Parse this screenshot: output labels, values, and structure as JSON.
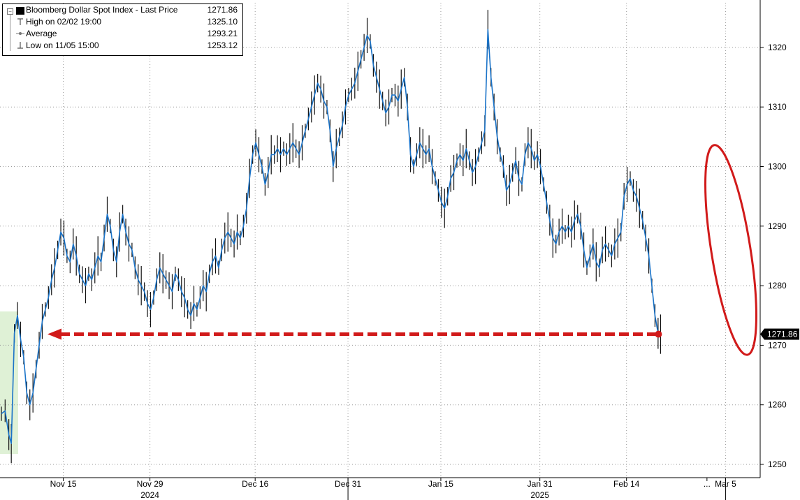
{
  "legend": {
    "title": "Bloomberg Dollar Spot Index - Last Price",
    "last_value": "1271.86",
    "high_label": "High on 02/02 19:00",
    "high_value": "1325.10",
    "avg_label": "Average",
    "avg_value": "1293.21",
    "low_label": "Low on 11/05 15:00",
    "low_value": "1253.12"
  },
  "last_price_tag": "1271.86",
  "colors": {
    "line": "#1a73c8",
    "annotation": "#d11a1a",
    "highlight": "#dff1d6",
    "grid": "#9a9a9a"
  },
  "chart_data": {
    "type": "line",
    "title": "",
    "ylabel": "",
    "xlabel": "",
    "ylim": [
      1248,
      1328
    ],
    "yticks": [
      1250,
      1260,
      1270,
      1280,
      1290,
      1300,
      1310,
      1320
    ],
    "xtick_labels": [
      "Nov 15",
      "Nov 29",
      "Dec 16",
      "Dec 31",
      "Jan 15",
      "Jan 31",
      "Feb 14",
      "...",
      "Mar 5"
    ],
    "year_labels": [
      "2024",
      "2025"
    ],
    "x_range_days": [
      0,
      120
    ],
    "xticks_day": [
      10,
      24,
      41,
      56,
      71,
      87,
      101,
      114,
      117
    ],
    "year_label_day": [
      24,
      87
    ],
    "year_separator_day": [
      56
    ],
    "series": [
      {
        "values": [
          [
            0,
            1258.5
          ],
          [
            0.6,
            1259
          ],
          [
            1.2,
            1255
          ],
          [
            1.6,
            1253.5
          ],
          [
            2.1,
            1272
          ],
          [
            2.6,
            1275
          ],
          [
            3.1,
            1271
          ],
          [
            3.6,
            1268
          ],
          [
            4.1,
            1262
          ],
          [
            4.6,
            1260
          ],
          [
            5.1,
            1262
          ],
          [
            5.6,
            1266
          ],
          [
            6.1,
            1270
          ],
          [
            6.6,
            1274
          ],
          [
            7.1,
            1276
          ],
          [
            7.6,
            1278
          ],
          [
            8.1,
            1281
          ],
          [
            8.6,
            1283
          ],
          [
            9.1,
            1286
          ],
          [
            9.6,
            1289
          ],
          [
            10.1,
            1288
          ],
          [
            10.6,
            1285
          ],
          [
            11.1,
            1284
          ],
          [
            11.6,
            1287
          ],
          [
            12.1,
            1285
          ],
          [
            12.6,
            1282
          ],
          [
            13.1,
            1281
          ],
          [
            13.6,
            1280
          ],
          [
            14.1,
            1282
          ],
          [
            14.6,
            1281
          ],
          [
            15.1,
            1283
          ],
          [
            15.6,
            1285
          ],
          [
            16.1,
            1284
          ],
          [
            16.6,
            1288
          ],
          [
            17.1,
            1292
          ],
          [
            17.6,
            1290
          ],
          [
            18.1,
            1286
          ],
          [
            18.6,
            1284
          ],
          [
            19.1,
            1289
          ],
          [
            19.6,
            1292
          ],
          [
            20.1,
            1289
          ],
          [
            20.6,
            1287
          ],
          [
            21.1,
            1286
          ],
          [
            21.6,
            1283
          ],
          [
            22.1,
            1281
          ],
          [
            22.6,
            1280
          ],
          [
            23.1,
            1279
          ],
          [
            23.6,
            1277
          ],
          [
            24.1,
            1276
          ],
          [
            24.6,
            1278
          ],
          [
            25.1,
            1281
          ],
          [
            25.6,
            1283
          ],
          [
            26.1,
            1282
          ],
          [
            26.6,
            1281
          ],
          [
            27.1,
            1280
          ],
          [
            27.6,
            1279
          ],
          [
            28.1,
            1282
          ],
          [
            28.6,
            1281
          ],
          [
            29.1,
            1279
          ],
          [
            29.6,
            1278
          ],
          [
            30.1,
            1276
          ],
          [
            30.6,
            1275
          ],
          [
            31.1,
            1277
          ],
          [
            31.6,
            1276
          ],
          [
            32.1,
            1278
          ],
          [
            32.6,
            1280
          ],
          [
            33.1,
            1279
          ],
          [
            33.6,
            1282
          ],
          [
            34.1,
            1284
          ],
          [
            34.6,
            1285
          ],
          [
            35.1,
            1283
          ],
          [
            35.6,
            1286
          ],
          [
            36.1,
            1288
          ],
          [
            36.6,
            1289
          ],
          [
            37.1,
            1288
          ],
          [
            37.6,
            1287
          ],
          [
            38.1,
            1289
          ],
          [
            38.6,
            1288
          ],
          [
            39.1,
            1290
          ],
          [
            39.6,
            1293
          ],
          [
            40.1,
            1298
          ],
          [
            40.6,
            1302
          ],
          [
            41.1,
            1304
          ],
          [
            41.6,
            1302
          ],
          [
            42.1,
            1300
          ],
          [
            42.6,
            1297
          ],
          [
            43.1,
            1299
          ],
          [
            43.6,
            1302
          ],
          [
            44.1,
            1302
          ],
          [
            44.6,
            1303
          ],
          [
            45.1,
            1302
          ],
          [
            45.6,
            1303
          ],
          [
            46.1,
            1302
          ],
          [
            46.6,
            1303
          ],
          [
            47.1,
            1304
          ],
          [
            47.6,
            1303
          ],
          [
            48.1,
            1302
          ],
          [
            48.6,
            1304
          ],
          [
            49.1,
            1306
          ],
          [
            49.6,
            1308
          ],
          [
            50.1,
            1310
          ],
          [
            50.6,
            1312
          ],
          [
            51.1,
            1314
          ],
          [
            51.6,
            1313
          ],
          [
            52.1,
            1311
          ],
          [
            52.6,
            1310
          ],
          [
            53.1,
            1306
          ],
          [
            53.6,
            1300
          ],
          [
            54.1,
            1303
          ],
          [
            54.6,
            1305
          ],
          [
            55.1,
            1307
          ],
          [
            55.6,
            1310
          ],
          [
            56.1,
            1312
          ],
          [
            56.6,
            1313
          ],
          [
            57.1,
            1314
          ],
          [
            57.6,
            1316
          ],
          [
            58.1,
            1318
          ],
          [
            58.6,
            1320
          ],
          [
            59.1,
            1322
          ],
          [
            59.6,
            1321
          ],
          [
            60.1,
            1317
          ],
          [
            60.6,
            1315
          ],
          [
            61.1,
            1313
          ],
          [
            61.6,
            1311
          ],
          [
            62.1,
            1309
          ],
          [
            62.6,
            1310
          ],
          [
            63.1,
            1312
          ],
          [
            63.6,
            1312
          ],
          [
            64.1,
            1311
          ],
          [
            64.6,
            1313
          ],
          [
            65.1,
            1315
          ],
          [
            65.6,
            1310
          ],
          [
            66.1,
            1302
          ],
          [
            66.6,
            1300
          ],
          [
            67.1,
            1302
          ],
          [
            67.6,
            1304
          ],
          [
            68.1,
            1303
          ],
          [
            68.6,
            1302
          ],
          [
            69.1,
            1303
          ],
          [
            69.6,
            1300
          ],
          [
            70.1,
            1298
          ],
          [
            70.6,
            1296
          ],
          [
            71.1,
            1294
          ],
          [
            71.6,
            1293
          ],
          [
            72.1,
            1295
          ],
          [
            72.6,
            1298
          ],
          [
            73.1,
            1299
          ],
          [
            73.6,
            1301
          ],
          [
            74.1,
            1302
          ],
          [
            74.6,
            1301
          ],
          [
            75.1,
            1303
          ],
          [
            75.6,
            1301
          ],
          [
            76.1,
            1299
          ],
          [
            76.6,
            1300
          ],
          [
            77.1,
            1302
          ],
          [
            77.6,
            1304
          ],
          [
            78.1,
            1306
          ],
          [
            78.6,
            1323
          ],
          [
            79.1,
            1315
          ],
          [
            79.6,
            1310
          ],
          [
            80.1,
            1305
          ],
          [
            80.6,
            1302
          ],
          [
            81.1,
            1300
          ],
          [
            81.6,
            1296
          ],
          [
            82.1,
            1297
          ],
          [
            82.6,
            1299
          ],
          [
            83.1,
            1301
          ],
          [
            83.6,
            1298
          ],
          [
            84.1,
            1297
          ],
          [
            84.6,
            1302
          ],
          [
            85.1,
            1304
          ],
          [
            85.6,
            1303
          ],
          [
            86.1,
            1301
          ],
          [
            86.6,
            1302
          ],
          [
            87.1,
            1300
          ],
          [
            87.6,
            1297
          ],
          [
            88.1,
            1294
          ],
          [
            88.6,
            1291
          ],
          [
            89.1,
            1288
          ],
          [
            89.6,
            1287
          ],
          [
            90.1,
            1289
          ],
          [
            90.6,
            1290
          ],
          [
            91.1,
            1289
          ],
          [
            91.6,
            1290
          ],
          [
            92.1,
            1289
          ],
          [
            92.6,
            1291
          ],
          [
            93.1,
            1292
          ],
          [
            93.6,
            1290
          ],
          [
            94.1,
            1286
          ],
          [
            94.6,
            1283
          ],
          [
            95.1,
            1285
          ],
          [
            95.6,
            1287
          ],
          [
            96.1,
            1284
          ],
          [
            96.6,
            1283
          ],
          [
            97.1,
            1286
          ],
          [
            97.6,
            1287
          ],
          [
            98.1,
            1286
          ],
          [
            98.6,
            1285
          ],
          [
            99.1,
            1287
          ],
          [
            99.6,
            1288
          ],
          [
            100.1,
            1289
          ],
          [
            100.6,
            1295
          ],
          [
            101.1,
            1297
          ],
          [
            101.6,
            1298
          ],
          [
            102.1,
            1296
          ],
          [
            102.6,
            1295
          ],
          [
            103.1,
            1293
          ],
          [
            103.6,
            1291
          ],
          [
            104.1,
            1288
          ],
          [
            104.6,
            1285
          ],
          [
            105.1,
            1280
          ],
          [
            105.6,
            1275
          ],
          [
            106.1,
            1272
          ],
          [
            106.5,
            1271.86
          ]
        ]
      }
    ]
  }
}
